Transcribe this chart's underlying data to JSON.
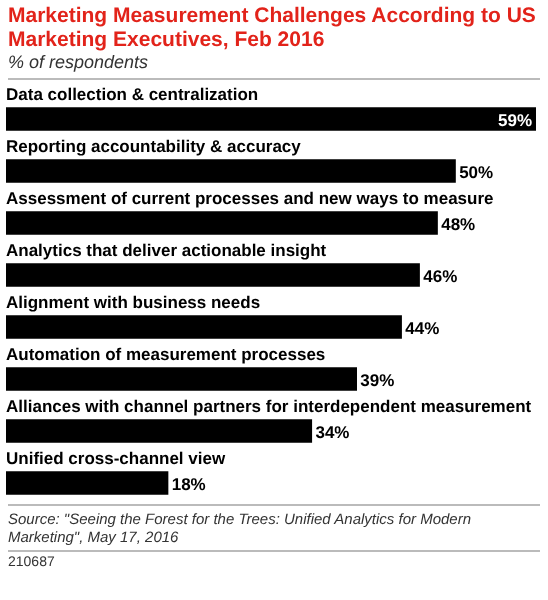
{
  "chart_data": {
    "type": "bar",
    "orientation": "horizontal",
    "title": "Marketing Measurement Challenges According to US Marketing Executives, Feb 2016",
    "subtitle": "% of respondents",
    "categories": [
      "Data collection & centralization",
      "Reporting accountability & accuracy",
      "Assessment of current processes and new ways to measure",
      "Analytics that deliver actionable insight",
      "Alignment with business needs",
      "Automation of measurement processes",
      "Alliances with channel partners for interdependent measurement",
      "Unified cross-channel view"
    ],
    "values": [
      59,
      50,
      48,
      46,
      44,
      39,
      34,
      18
    ],
    "value_labels": [
      "59%",
      "50%",
      "48%",
      "46%",
      "44%",
      "39%",
      "34%",
      "18%"
    ],
    "color": "#000000",
    "annotations": [
      "Source: \"Seeing the Forest for the Trees: Unified Analytics for Modern Marketing\", May 17, 2016",
      "210687"
    ]
  }
}
